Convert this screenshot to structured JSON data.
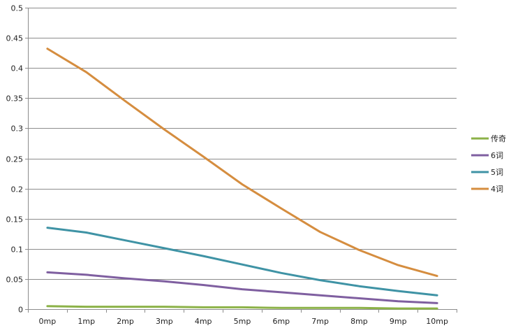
{
  "chart_data": {
    "type": "line",
    "title": "",
    "xlabel": "",
    "ylabel": "",
    "categories": [
      "0mp",
      "1mp",
      "2mp",
      "3mp",
      "4mp",
      "5mp",
      "6mp",
      "7mp",
      "8mp",
      "9mp",
      "10mp"
    ],
    "ylim": [
      0,
      0.5
    ],
    "yticks": [
      0,
      0.05,
      0.1,
      0.15,
      0.2,
      0.25,
      0.3,
      0.35,
      0.4,
      0.45,
      0.5
    ],
    "ytick_labels": [
      "0",
      "0.05",
      "0.1",
      "0.15",
      "0.2",
      "0.25",
      "0.3",
      "0.35",
      "0.4",
      "0.45",
      "0.5"
    ],
    "grid": true,
    "legend_position": "right",
    "series": [
      {
        "name": "传奇",
        "color": "#8cb248",
        "values": [
          0.005,
          0.004,
          0.004,
          0.004,
          0.003,
          0.003,
          0.002,
          0.002,
          0.002,
          0.001,
          0.001
        ]
      },
      {
        "name": "6词",
        "color": "#7f5fa0",
        "values": [
          0.061,
          0.057,
          0.051,
          0.046,
          0.04,
          0.033,
          0.028,
          0.023,
          0.018,
          0.013,
          0.01
        ]
      },
      {
        "name": "5词",
        "color": "#3f93a5",
        "values": [
          0.135,
          0.127,
          0.114,
          0.101,
          0.088,
          0.074,
          0.06,
          0.048,
          0.038,
          0.03,
          0.023
        ]
      },
      {
        "name": "4词",
        "color": "#d58d3f",
        "values": [
          0.432,
          0.393,
          0.345,
          0.298,
          0.253,
          0.207,
          0.167,
          0.128,
          0.098,
          0.073,
          0.055
        ]
      }
    ]
  }
}
